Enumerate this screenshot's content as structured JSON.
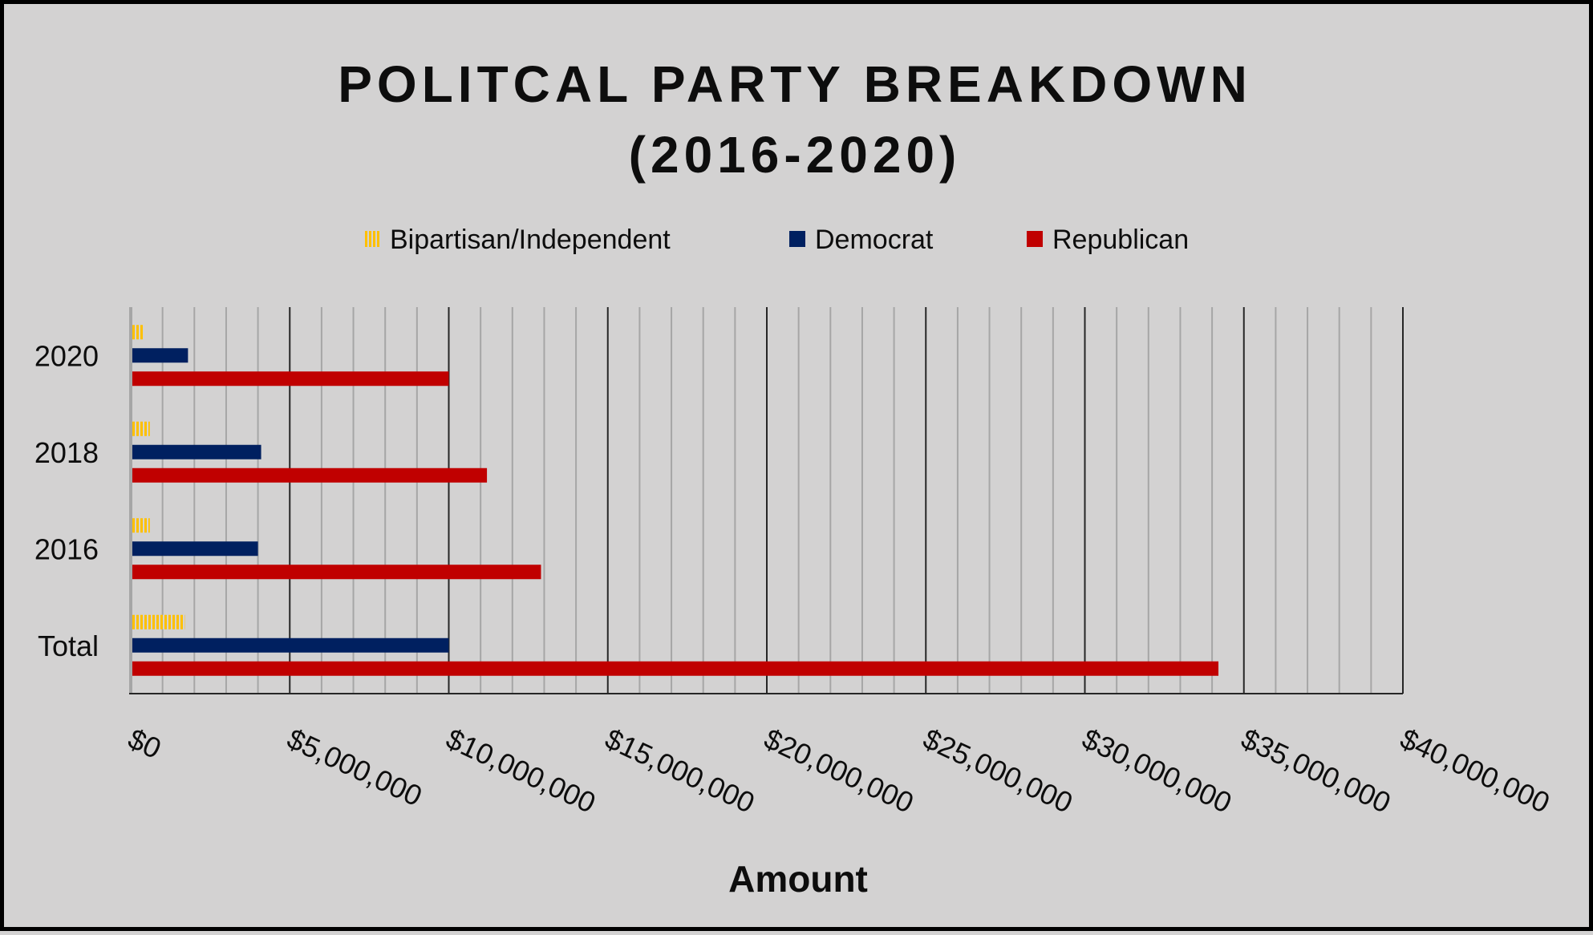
{
  "chart_data": {
    "type": "bar",
    "orientation": "horizontal",
    "title_lines": [
      "POLITCAL PARTY BREAKDOWN",
      "(2016-2020)"
    ],
    "xlabel": "Amount",
    "ylabel": "",
    "categories": [
      "2020",
      "2018",
      "2016",
      "Total"
    ],
    "series": [
      {
        "name": "Bipartisan/Independent",
        "color": "#ffc000",
        "pattern": "vertical-stripes",
        "values": [
          400000,
          600000,
          600000,
          1700000
        ]
      },
      {
        "name": "Democrat",
        "color": "#002060",
        "pattern": "solid",
        "values": [
          1800000,
          4100000,
          4000000,
          10000000
        ]
      },
      {
        "name": "Republican",
        "color": "#c00000",
        "pattern": "solid",
        "values": [
          10000000,
          11200000,
          12900000,
          34200000
        ]
      }
    ],
    "xlim": [
      0,
      40000000
    ],
    "xticks": [
      0,
      5000000,
      10000000,
      15000000,
      20000000,
      25000000,
      30000000,
      35000000,
      40000000
    ],
    "xtick_labels": [
      "$0",
      "$5,000,000",
      "$10,000,000",
      "$15,000,000",
      "$20,000,000",
      "$25,000,000",
      "$30,000,000",
      "$35,000,000",
      "$40,000,000"
    ],
    "minor_xtick_step": 1000000,
    "grid": true,
    "legend_position": "top"
  },
  "colors": {
    "background": "#d3d2d2",
    "major_grid": "#262626",
    "minor_grid": "#a6a6a6",
    "text": "#0d0d0d"
  }
}
